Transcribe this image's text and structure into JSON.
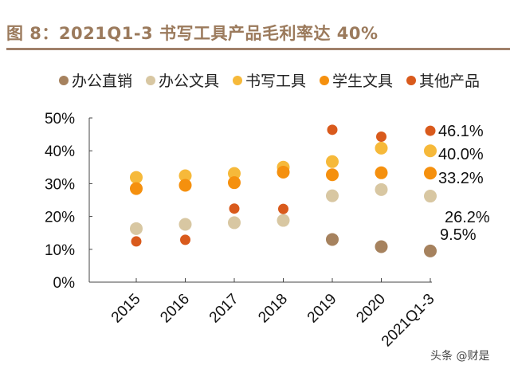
{
  "title": "图 8：2021Q1-3 书写工具产品毛利率达 40%",
  "watermark": "头条 @财是",
  "chart_data": {
    "type": "scatter",
    "title": "图 8：2021Q1-3 书写工具产品毛利率达 40%",
    "xlabel": "",
    "ylabel": "",
    "categories": [
      "2015",
      "2016",
      "2017",
      "2018",
      "2019",
      "2020",
      "2021Q1-3"
    ],
    "ylim": [
      0,
      50
    ],
    "yticks": [
      "0%",
      "10%",
      "20%",
      "30%",
      "40%",
      "50%"
    ],
    "legend_position": "top",
    "series": [
      {
        "name": "办公直销",
        "color": "#a6825e",
        "values": [
          null,
          null,
          null,
          null,
          13.0,
          10.8,
          9.5
        ]
      },
      {
        "name": "办公文具",
        "color": "#d8c7a2",
        "values": [
          16.3,
          17.6,
          18.1,
          18.8,
          26.3,
          28.2,
          26.2
        ]
      },
      {
        "name": "书写工具",
        "color": "#f6b93a",
        "values": [
          31.9,
          32.4,
          33.1,
          35.0,
          36.7,
          40.8,
          40.0
        ]
      },
      {
        "name": "学生文具",
        "color": "#f5900e",
        "values": [
          28.5,
          29.5,
          30.3,
          33.5,
          32.7,
          33.3,
          33.2
        ]
      },
      {
        "name": "其他产品",
        "color": "#d95a1c",
        "values": [
          12.4,
          12.9,
          22.4,
          22.3,
          46.4,
          44.3,
          46.1
        ]
      }
    ],
    "annotations": [
      "46.1%",
      "40.0%",
      "33.2%",
      "26.2%",
      "9.5%"
    ]
  }
}
